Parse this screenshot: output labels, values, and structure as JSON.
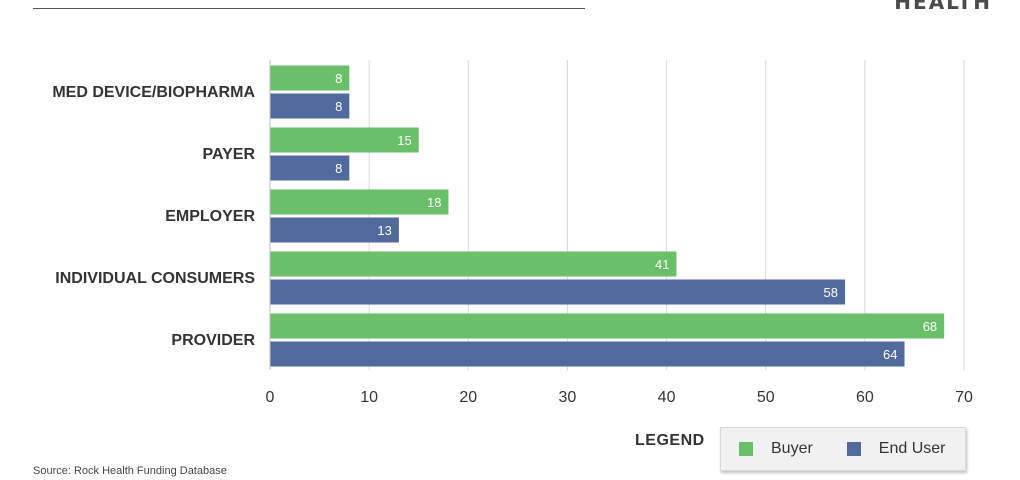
{
  "header": {
    "brand_text": "HEALTH"
  },
  "chart_data": {
    "type": "bar",
    "orientation": "horizontal",
    "categories": [
      "MED DEVICE/BIOPHARMA",
      "PAYER",
      "EMPLOYER",
      "INDIVIDUAL CONSUMERS",
      "PROVIDER"
    ],
    "series": [
      {
        "name": "Buyer",
        "color": "#6abf69",
        "values": [
          8,
          15,
          18,
          41,
          68
        ]
      },
      {
        "name": "End User",
        "color": "#52699e",
        "values": [
          8,
          8,
          13,
          58,
          64
        ]
      }
    ],
    "xlim": [
      0,
      70
    ],
    "xticks": [
      0,
      10,
      20,
      30,
      40,
      50,
      60,
      70
    ],
    "grid": true,
    "data_labels": true,
    "legend": {
      "title": "LEGEND",
      "placement": "bottom-right"
    }
  },
  "footer": {
    "source": "Source: Rock Health Funding Database"
  }
}
